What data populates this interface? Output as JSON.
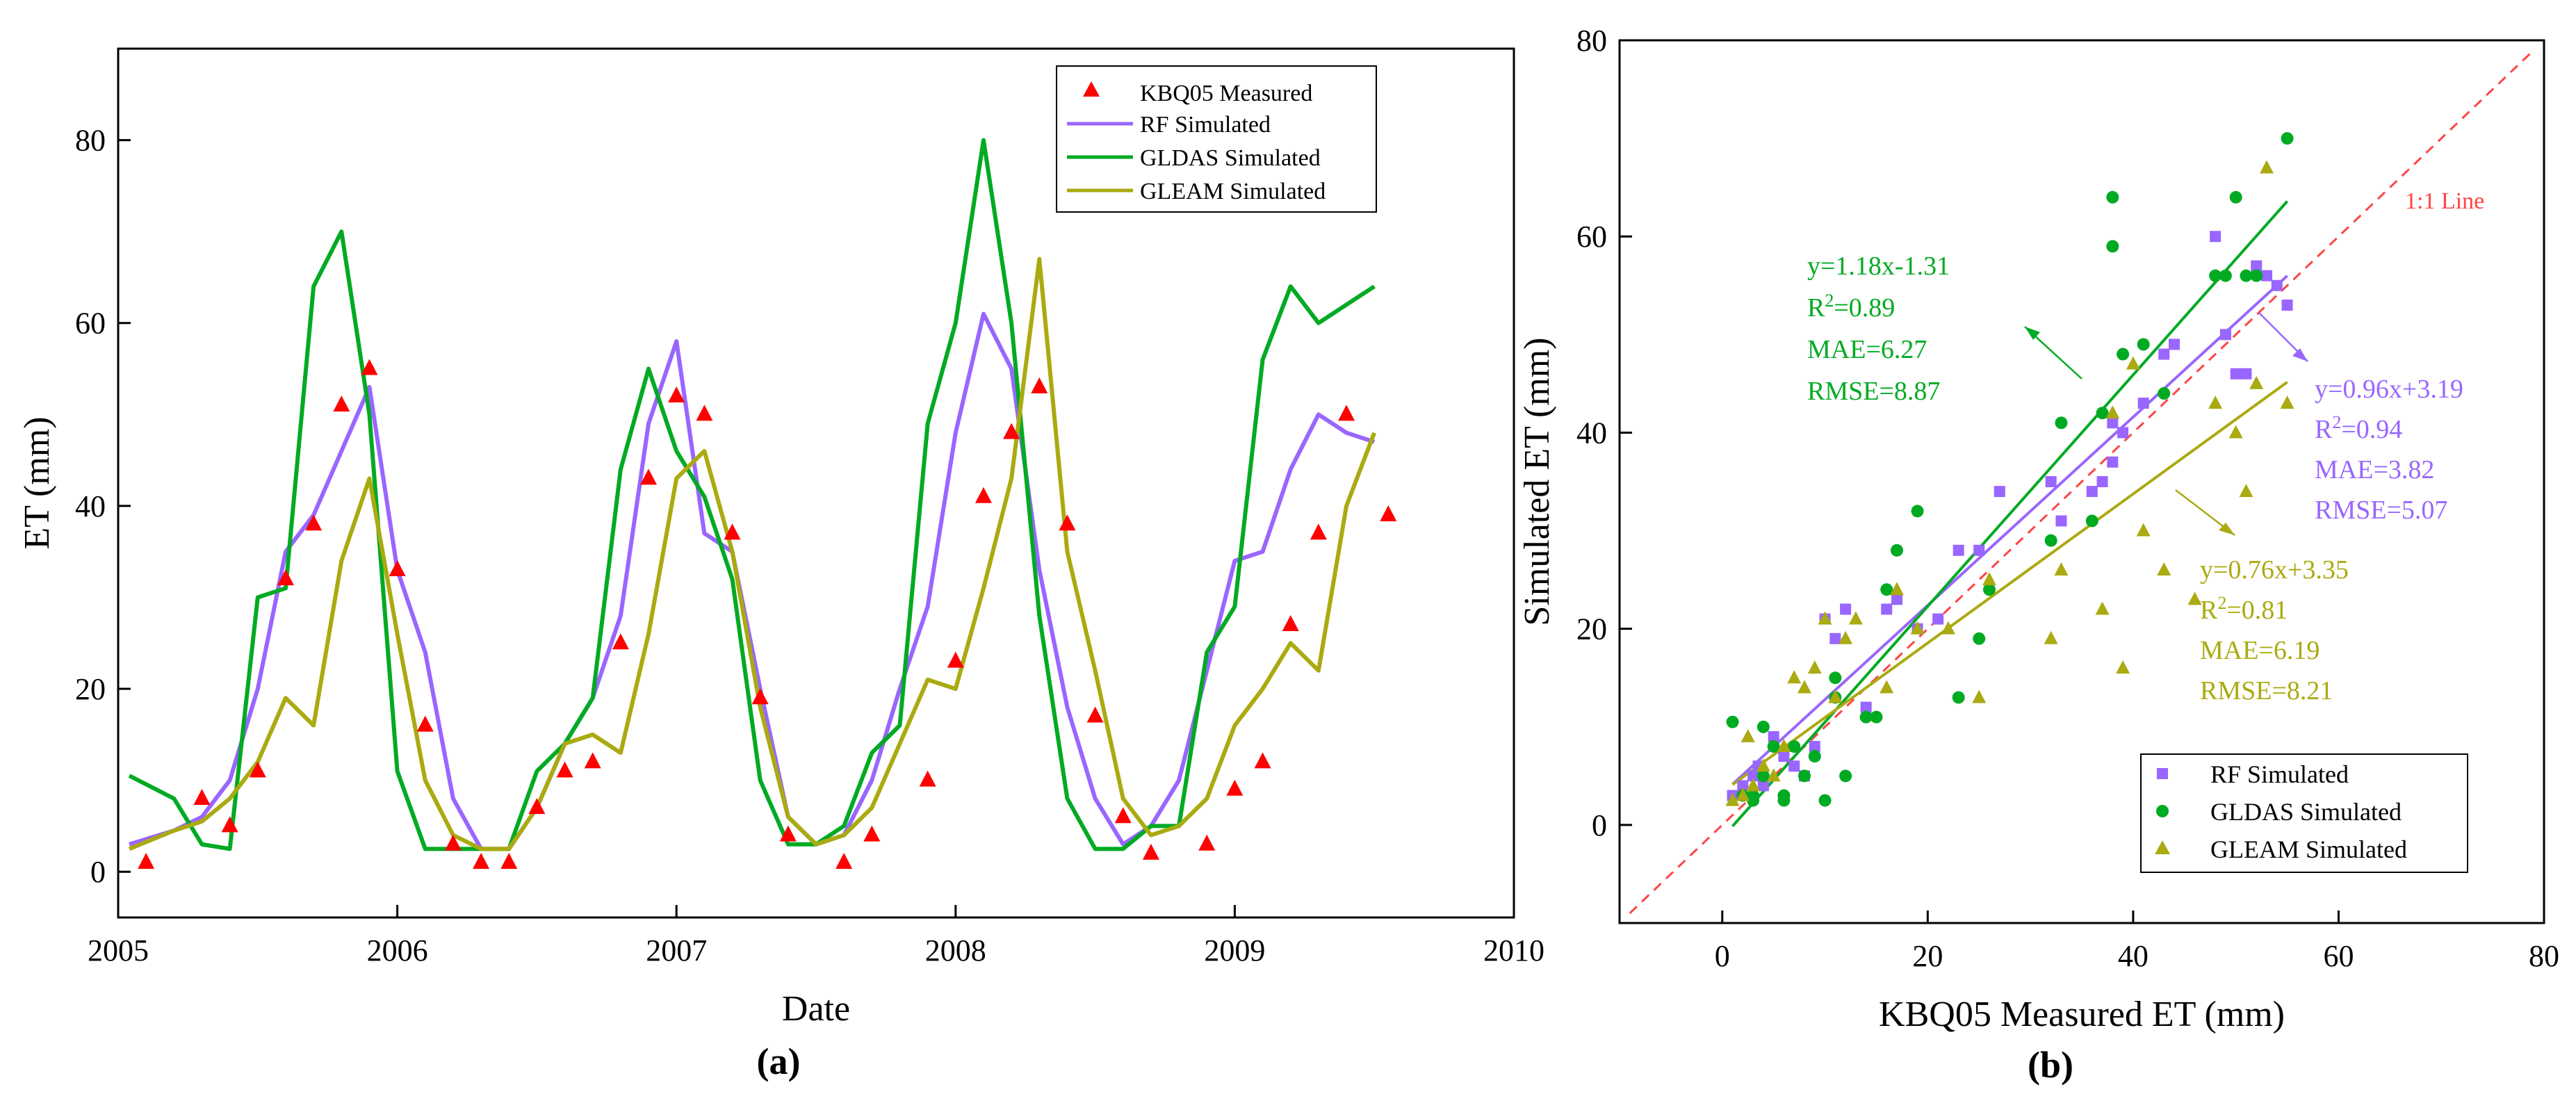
{
  "colors": {
    "measured": "#ff0000",
    "rf": "#9966ff",
    "gldas": "#00aa22",
    "gleam": "#aaaa11",
    "oneToOne": "#ff4444",
    "axis": "#000000"
  },
  "panel_labels": {
    "a": "(a)",
    "b": "(b)"
  },
  "chart_data": [
    {
      "type": "line",
      "title": "",
      "panel": "(a)",
      "xlabel": "Date",
      "ylabel": "ET (mm)",
      "xlim": [
        2005,
        2010
      ],
      "ylim": [
        -5,
        90
      ],
      "xticks": [
        2005,
        2006,
        2007,
        2008,
        2009,
        2010
      ],
      "xtick_labels": [
        "2005",
        "2006",
        "2007",
        "2008",
        "2009",
        "2010"
      ],
      "yticks": [
        0,
        20,
        40,
        60,
        80
      ],
      "ytick_labels": [
        "0",
        "20",
        "40",
        "60",
        "80"
      ],
      "legend_position": "top-right",
      "legend": [
        "KBQ05 Measured",
        "RF Simulated",
        "GLDAS Simulated",
        "GLEAM Simulated"
      ],
      "x": [
        2005.04,
        2005.2,
        2005.3,
        2005.4,
        2005.5,
        2005.6,
        2005.7,
        2005.8,
        2005.9,
        2006.0,
        2006.1,
        2006.2,
        2006.3,
        2006.4,
        2006.5,
        2006.6,
        2006.7,
        2006.8,
        2006.9,
        2007.0,
        2007.1,
        2007.2,
        2007.3,
        2007.4,
        2007.5,
        2007.6,
        2007.7,
        2007.8,
        2007.9,
        2008.0,
        2008.1,
        2008.2,
        2008.3,
        2008.4,
        2008.5,
        2008.6,
        2008.7,
        2008.8,
        2008.9,
        2009.0,
        2009.1,
        2009.2,
        2009.3,
        2009.4,
        2009.5
      ],
      "series": [
        {
          "name": "KBQ05 Measured",
          "marker": "triangle",
          "x": [
            2005.1,
            2005.3,
            2005.4,
            2005.5,
            2005.6,
            2005.7,
            2005.8,
            2005.9,
            2006.0,
            2006.1,
            2006.2,
            2006.3,
            2006.4,
            2006.5,
            2006.6,
            2006.7,
            2006.8,
            2006.9,
            2007.0,
            2007.1,
            2007.2,
            2007.3,
            2007.4,
            2007.6,
            2007.7,
            2007.9,
            2008.0,
            2008.1,
            2008.2,
            2008.3,
            2008.4,
            2008.5,
            2008.6,
            2008.7,
            2008.9,
            2009.0,
            2009.1,
            2009.2,
            2009.3,
            2009.4,
            2009.55
          ],
          "values": [
            1,
            8,
            5,
            11,
            32,
            38,
            51,
            55,
            33,
            16,
            3,
            1,
            1,
            7,
            11,
            12,
            25,
            43,
            52,
            50,
            37,
            19,
            4,
            1,
            4,
            10,
            23,
            41,
            48,
            53,
            38,
            17,
            6,
            2,
            3,
            9,
            12,
            27,
            37,
            50,
            39
          ]
        },
        {
          "name": "RF Simulated",
          "values": [
            3,
            4.5,
            6,
            10,
            20,
            35,
            39,
            46,
            53,
            33,
            24,
            8,
            2.5,
            2.5,
            7,
            14,
            19,
            28,
            49,
            58,
            37,
            35,
            20,
            6,
            3,
            4,
            10,
            20,
            29,
            48,
            61,
            55,
            33,
            18,
            8,
            3,
            5,
            10,
            22,
            34,
            35,
            44,
            50,
            48,
            47
          ]
        },
        {
          "name": "GLDAS Simulated",
          "values": [
            10.5,
            8,
            3,
            2.5,
            30,
            31,
            64,
            70,
            50,
            11,
            2.5,
            2.5,
            2.5,
            2.5,
            11,
            14,
            19,
            44,
            55,
            46,
            41,
            32,
            10,
            3,
            3,
            5,
            13,
            16,
            49,
            60,
            80,
            60,
            28,
            8,
            2.5,
            2.5,
            5,
            5,
            24,
            29,
            56,
            64,
            60,
            62,
            64
          ]
        },
        {
          "name": "GLEAM Simulated",
          "values": [
            2.5,
            4.5,
            5.5,
            8,
            12,
            19,
            16,
            34,
            43,
            26,
            10,
            4,
            2.5,
            2.5,
            7,
            14,
            15,
            13,
            26,
            43,
            46,
            35,
            18,
            6,
            3,
            4,
            7,
            14,
            21,
            20,
            31,
            43,
            67,
            35,
            22,
            8,
            4,
            5,
            8,
            16,
            20,
            25,
            22,
            40,
            48
          ]
        }
      ]
    },
    {
      "type": "scatter",
      "title": "",
      "panel": "(b)",
      "xlabel": "KBQ05 Measured ET (mm)",
      "ylabel": "Simulated ET (mm)",
      "xlim": [
        -10,
        80
      ],
      "ylim": [
        -10,
        80
      ],
      "xticks": [
        0,
        20,
        40,
        60,
        80
      ],
      "xtick_labels": [
        "0",
        "20",
        "40",
        "60",
        "80"
      ],
      "yticks": [
        0,
        20,
        40,
        60,
        80
      ],
      "ytick_labels": [
        "0",
        "20",
        "40",
        "60",
        "80"
      ],
      "legend_position": "bottom-right",
      "legend": [
        "RF Simulated",
        "GLDAS Simulated",
        "GLEAM Simulated"
      ],
      "reference_line": {
        "label": "1:1 Line",
        "slope": 1,
        "intercept": 0
      },
      "series": [
        {
          "name": "RF Simulated",
          "marker": "square",
          "fit": {
            "slope": 0.96,
            "intercept": 3.19
          },
          "stats": [
            "y=0.96x+3.19",
            "R2=0.94",
            "MAE=3.82",
            "RMSE=5.07"
          ],
          "x": [
            1,
            2,
            3,
            3.5,
            4,
            5,
            6,
            7,
            8,
            9,
            10,
            11,
            12,
            14,
            16,
            17,
            19,
            21,
            23,
            25,
            27,
            32,
            33,
            36,
            37,
            38,
            38,
            39,
            41,
            43,
            44,
            48,
            49,
            50,
            51,
            52,
            53,
            54,
            55
          ],
          "y": [
            3,
            4,
            5,
            6,
            4,
            9,
            7,
            6,
            5,
            8,
            21,
            19,
            22,
            12,
            22,
            23,
            20,
            21,
            28,
            28,
            34,
            35,
            31,
            34,
            35,
            37,
            41,
            40,
            43,
            48,
            49,
            60,
            50,
            46,
            46,
            57,
            56,
            55,
            53
          ]
        },
        {
          "name": "GLDAS Simulated",
          "marker": "circle",
          "fit": {
            "slope": 1.18,
            "intercept": -1.31
          },
          "stats": [
            "y=1.18x-1.31",
            "R2=0.89",
            "MAE=6.27",
            "RMSE=8.87"
          ],
          "x": [
            1,
            2,
            3,
            3,
            4,
            4,
            5,
            6,
            6,
            7,
            8,
            9,
            10,
            11,
            11,
            12,
            14,
            15,
            16,
            17,
            19,
            23,
            25,
            26,
            32,
            33,
            36,
            37,
            38,
            38,
            39,
            41,
            43,
            48,
            49,
            50,
            51,
            52,
            55
          ],
          "y": [
            10.5,
            3,
            3,
            2.5,
            10,
            5,
            8,
            3,
            2.5,
            8,
            5,
            7,
            2.5,
            15,
            13,
            5,
            11,
            11,
            24,
            28,
            32,
            13,
            19,
            24,
            29,
            41,
            31,
            42,
            59,
            64,
            48,
            49,
            44,
            56,
            56,
            64,
            56,
            56,
            70
          ]
        },
        {
          "name": "GLEAM Simulated",
          "marker": "triangle",
          "fit": {
            "slope": 0.76,
            "intercept": 3.35
          },
          "stats": [
            "y=0.76x+3.35",
            "R2=0.81",
            "MAE=6.19",
            "RMSE=8.21"
          ],
          "x": [
            1,
            2,
            2.5,
            3,
            4,
            5,
            6,
            7,
            8,
            9,
            10,
            11,
            12,
            13,
            16,
            17,
            19,
            22,
            25,
            26,
            32,
            33,
            37,
            38,
            39,
            40,
            41,
            43,
            46,
            48,
            50,
            51,
            52,
            53,
            55
          ],
          "y": [
            2.5,
            3,
            9,
            4,
            6,
            5,
            8,
            15,
            14,
            16,
            21,
            13,
            19,
            21,
            14,
            24,
            20,
            20,
            13,
            25,
            19,
            26,
            22,
            42,
            16,
            47,
            30,
            26,
            23,
            43,
            40,
            34,
            45,
            67,
            43
          ]
        }
      ]
    }
  ]
}
